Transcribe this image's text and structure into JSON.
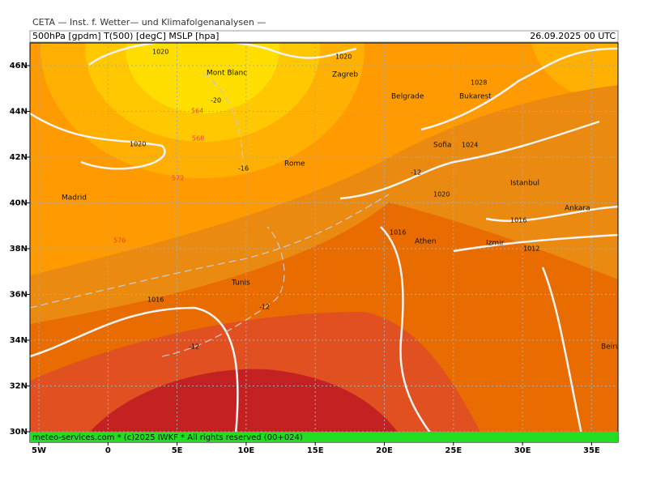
{
  "header": {
    "title": "CETA — Inst. f. Wetter— und Klimafolgenanalysen —",
    "fields": "500hPa [gpdm] T(500) [degC] MSLP [hpa]",
    "valid": "26.09.2025 00 UTC"
  },
  "axes": {
    "lat_labels": [
      "46N",
      "44N",
      "42N",
      "40N",
      "38N",
      "36N",
      "34N",
      "32N",
      "30N"
    ],
    "lon_labels": [
      "5W",
      "0",
      "5E",
      "10E",
      "15E",
      "20E",
      "25E",
      "30E",
      "35E"
    ]
  },
  "cities": [
    "Mont Blanc",
    "Zagreb",
    "Belgrade",
    "Bukarest",
    "Sofia",
    "Rome",
    "Madrid",
    "Istanbul",
    "Ankara",
    "Athen",
    "Izmir",
    "Tunis",
    "Beirut"
  ],
  "isobar_labels": [
    "1020",
    "1020",
    "1028",
    "1020",
    "1024",
    "1020",
    "1016",
    "1016",
    "1012",
    "1016"
  ],
  "isotherm_labels": [
    "-20",
    "-16",
    "-12",
    "-12",
    "-12"
  ],
  "height_labels": [
    "564",
    "568",
    "572",
    "576"
  ],
  "footer": "meteo-services.com * (c)2025 IWKF * All rights reserved (00+024)"
}
